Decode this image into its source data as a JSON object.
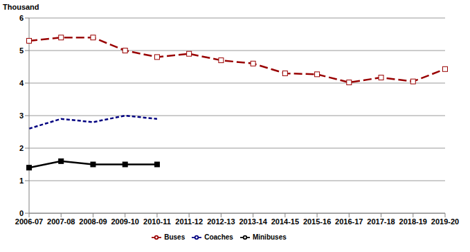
{
  "chart_data": {
    "type": "line",
    "y_label": "Thousand",
    "categories": [
      "2006-07",
      "2007-08",
      "2008-09",
      "2009-10",
      "2010-11",
      "2011-12",
      "2012-13",
      "2013-14",
      "2014-15",
      "2015-16",
      "2016-17",
      "2017-18",
      "2018-19",
      "2019-20"
    ],
    "series": [
      {
        "name": "Buses",
        "color": "#990000",
        "marker": "square_open",
        "line_style": "dashed",
        "values": [
          5.3,
          5.4,
          5.4,
          5.0,
          4.8,
          4.9,
          4.7,
          4.6,
          4.3,
          4.27,
          4.02,
          4.17,
          4.05,
          4.43
        ]
      },
      {
        "name": "Coaches",
        "color": "#000080",
        "marker": "none",
        "line_style": "short_dashed",
        "values": [
          2.6,
          2.9,
          2.8,
          3.0,
          2.9,
          null,
          null,
          null,
          null,
          null,
          null,
          null,
          null,
          null
        ]
      },
      {
        "name": "Minibuses",
        "color": "#000000",
        "marker": "square",
        "line_style": "solid",
        "values": [
          1.4,
          1.6,
          1.5,
          1.5,
          1.5,
          null,
          null,
          null,
          null,
          null,
          null,
          null,
          null,
          null
        ]
      }
    ],
    "ylim": [
      0,
      6
    ],
    "yticks": [
      0,
      1,
      2,
      3,
      4,
      5,
      6
    ],
    "grid": true,
    "legend": "bottom"
  }
}
